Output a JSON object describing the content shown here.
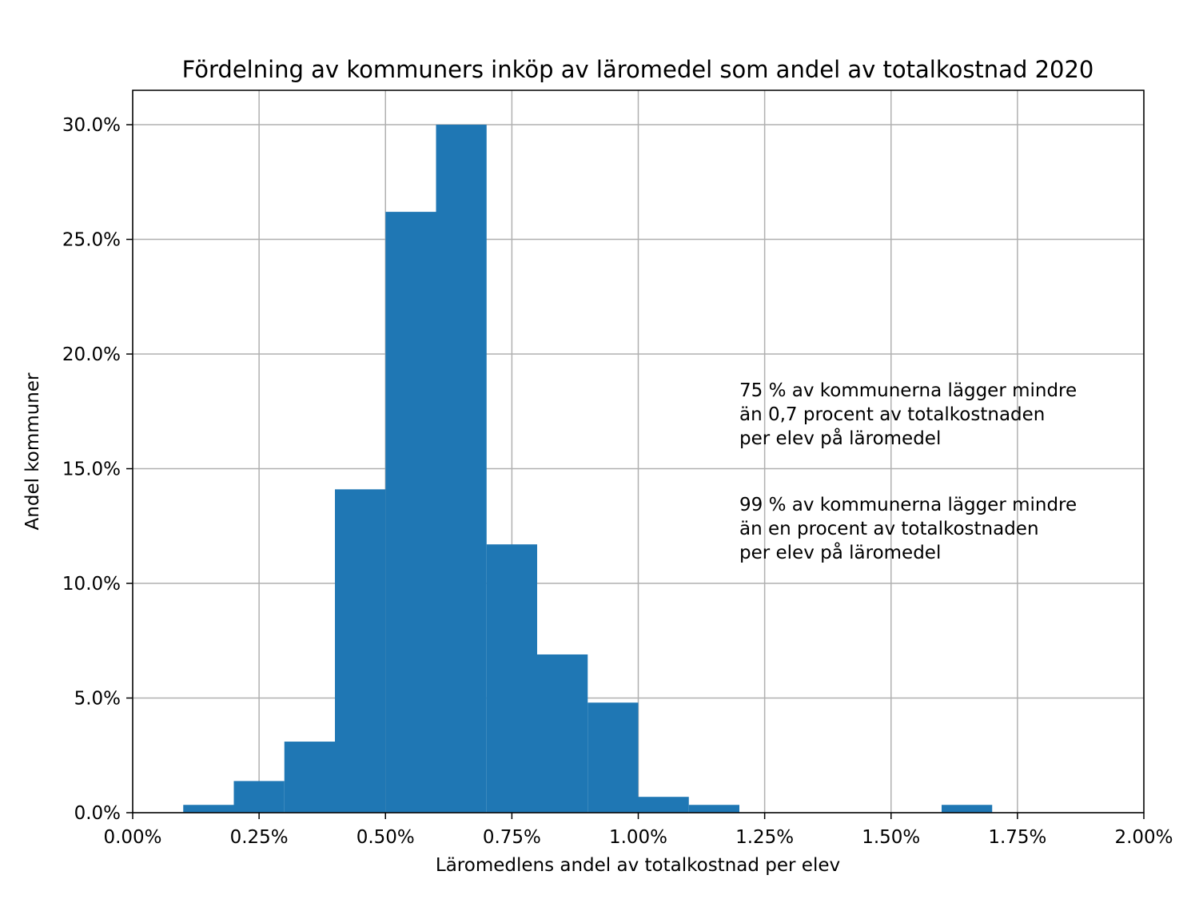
{
  "chart_data": {
    "type": "bar",
    "title": "Fördelning av kommuners inköp av läromedel som andel av totalkostnad 2020",
    "xlabel": "Läromedlens andel av totalkostnad per elev",
    "ylabel": "Andel kommuner",
    "xlim": [
      0.0,
      2.0
    ],
    "ylim": [
      0.0,
      31.5
    ],
    "x_ticks": [
      0.0,
      0.25,
      0.5,
      0.75,
      1.0,
      1.25,
      1.5,
      1.75,
      2.0
    ],
    "x_tick_labels": [
      "0.00%",
      "0.25%",
      "0.50%",
      "0.75%",
      "1.00%",
      "1.25%",
      "1.50%",
      "1.75%",
      "2.00%"
    ],
    "y_ticks": [
      0,
      5,
      10,
      15,
      20,
      25,
      30
    ],
    "y_tick_labels": [
      "0.0%",
      "5.0%",
      "10.0%",
      "15.0%",
      "20.0%",
      "25.0%",
      "30.0%"
    ],
    "grid": true,
    "bar_color": "#1f77b4",
    "bins": [
      {
        "start": 0.1,
        "end": 0.2,
        "value": 0.34
      },
      {
        "start": 0.2,
        "end": 0.3,
        "value": 1.38
      },
      {
        "start": 0.3,
        "end": 0.4,
        "value": 3.1
      },
      {
        "start": 0.4,
        "end": 0.5,
        "value": 14.1
      },
      {
        "start": 0.5,
        "end": 0.6,
        "value": 26.2
      },
      {
        "start": 0.6,
        "end": 0.7,
        "value": 30.0
      },
      {
        "start": 0.7,
        "end": 0.8,
        "value": 11.7
      },
      {
        "start": 0.8,
        "end": 0.9,
        "value": 6.9
      },
      {
        "start": 0.9,
        "end": 1.0,
        "value": 4.8
      },
      {
        "start": 1.0,
        "end": 1.1,
        "value": 0.69
      },
      {
        "start": 1.1,
        "end": 1.2,
        "value": 0.34
      },
      {
        "start": 1.6,
        "end": 1.7,
        "value": 0.34
      }
    ],
    "annotations": [
      {
        "lines": [
          "75 % av kommunerna lägger mindre",
          "än 0,7 procent av totalkostnaden",
          "per elev på läromedel"
        ]
      },
      {
        "lines": [
          "99 % av kommunerna lägger mindre",
          "än en procent av totalkostnaden",
          "per elev på läromedel"
        ]
      }
    ]
  }
}
